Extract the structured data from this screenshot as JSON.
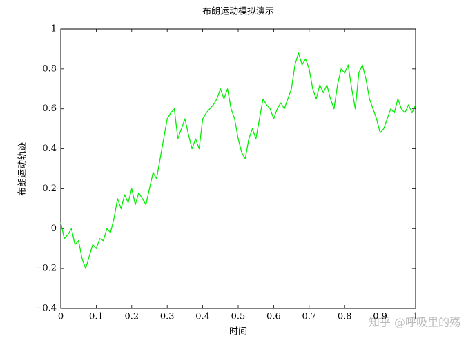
{
  "chart_data": {
    "type": "line",
    "title": "布朗运动模拟演示",
    "x_label": "时间",
    "y_label": "布朗运动轨迹",
    "watermark": "知乎 @呼吸里的殇",
    "x": [
      0,
      0.01,
      0.02,
      0.03,
      0.04,
      0.05,
      0.06,
      0.07,
      0.08,
      0.09,
      0.1,
      0.11,
      0.12,
      0.13,
      0.14,
      0.15,
      0.16,
      0.17,
      0.18,
      0.19,
      0.2,
      0.21,
      0.22,
      0.23,
      0.24,
      0.25,
      0.26,
      0.27,
      0.28,
      0.29,
      0.3,
      0.31,
      0.32,
      0.33,
      0.34,
      0.35,
      0.36,
      0.37,
      0.38,
      0.39,
      0.4,
      0.41,
      0.42,
      0.43,
      0.44,
      0.45,
      0.46,
      0.47,
      0.48,
      0.49,
      0.5,
      0.51,
      0.52,
      0.53,
      0.54,
      0.55,
      0.56,
      0.57,
      0.58,
      0.59,
      0.6,
      0.61,
      0.62,
      0.63,
      0.64,
      0.65,
      0.66,
      0.67,
      0.68,
      0.69,
      0.7,
      0.71,
      0.72,
      0.73,
      0.74,
      0.75,
      0.76,
      0.77,
      0.78,
      0.79,
      0.8,
      0.81,
      0.82,
      0.83,
      0.84,
      0.85,
      0.86,
      0.87,
      0.88,
      0.89,
      0.9,
      0.91,
      0.92,
      0.93,
      0.94,
      0.95,
      0.96,
      0.97,
      0.98,
      0.99,
      1
    ],
    "series": [
      {
        "name": "布朗运动轨迹",
        "color": "#00ee00",
        "values": [
          0.03,
          -0.05,
          -0.03,
          0.0,
          -0.08,
          -0.06,
          -0.15,
          -0.2,
          -0.14,
          -0.08,
          -0.1,
          -0.05,
          -0.06,
          0.0,
          -0.02,
          0.05,
          0.15,
          0.1,
          0.17,
          0.13,
          0.2,
          0.12,
          0.18,
          0.15,
          0.12,
          0.2,
          0.28,
          0.25,
          0.35,
          0.45,
          0.55,
          0.58,
          0.6,
          0.45,
          0.5,
          0.55,
          0.47,
          0.4,
          0.45,
          0.4,
          0.55,
          0.58,
          0.6,
          0.62,
          0.65,
          0.7,
          0.65,
          0.7,
          0.6,
          0.55,
          0.45,
          0.38,
          0.35,
          0.45,
          0.5,
          0.45,
          0.55,
          0.65,
          0.62,
          0.6,
          0.55,
          0.6,
          0.63,
          0.6,
          0.65,
          0.7,
          0.82,
          0.88,
          0.82,
          0.85,
          0.8,
          0.7,
          0.65,
          0.72,
          0.68,
          0.72,
          0.65,
          0.6,
          0.72,
          0.8,
          0.78,
          0.82,
          0.7,
          0.6,
          0.78,
          0.82,
          0.75,
          0.65,
          0.6,
          0.55,
          0.48,
          0.5,
          0.55,
          0.6,
          0.58,
          0.65,
          0.6,
          0.58,
          0.62,
          0.58,
          0.62
        ]
      }
    ],
    "xlim": [
      0,
      1
    ],
    "ylim": [
      -0.4,
      1
    ],
    "xticks": [
      0,
      0.1,
      0.2,
      0.3,
      0.4,
      0.5,
      0.6,
      0.7,
      0.8,
      0.9,
      1
    ],
    "yticks": [
      {
        "value": -0.4,
        "label": "−0.4"
      },
      {
        "value": -0.2,
        "label": "−0.2"
      },
      0,
      0.2,
      0.4,
      0.6,
      0.8,
      1
    ]
  }
}
